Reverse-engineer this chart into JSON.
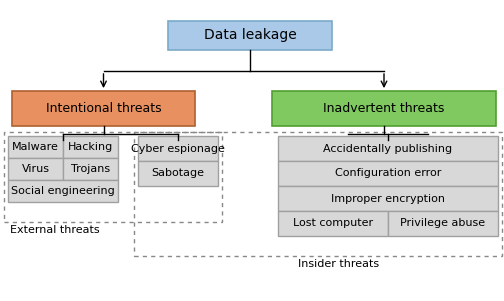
{
  "title": "Data leakage",
  "title_box_color": "#aac8e8",
  "title_box_edge": "#7aaac8",
  "intentional_label": "Intentional threats",
  "intentional_color": "#e89060",
  "intentional_edge": "#b06030",
  "inadvertent_label": "Inadvertent threats",
  "inadvertent_color": "#80c860",
  "inadvertent_edge": "#50a030",
  "leaf_color": "#d8d8d8",
  "leaf_edge": "#a0a0a0",
  "external_label": "External threats",
  "insider_label": "Insider threats",
  "bg_color": "#ffffff"
}
